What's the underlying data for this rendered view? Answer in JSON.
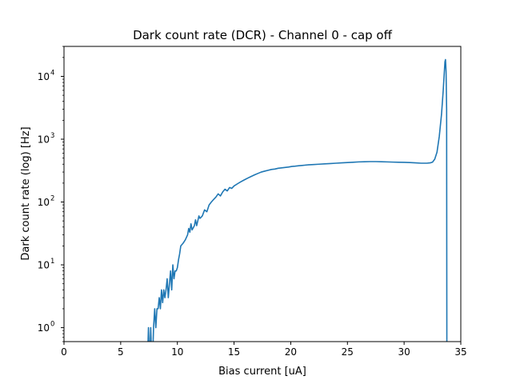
{
  "chart_data": {
    "type": "line",
    "title": "Dark count rate (DCR) - Channel 0 - cap off",
    "xlabel": "Bias current [uA]",
    "ylabel": "Dark count rate (log) [Hz]",
    "xlim": [
      0,
      35
    ],
    "ylim": [
      0.6,
      30000
    ],
    "y_scale": "log",
    "grid": false,
    "x_ticks": [
      0,
      5,
      10,
      15,
      20,
      25,
      30,
      35
    ],
    "y_ticks": [
      {
        "value": 1,
        "label": "10",
        "exp": "0"
      },
      {
        "value": 10,
        "label": "10",
        "exp": "1"
      },
      {
        "value": 100,
        "label": "10",
        "exp": "2"
      },
      {
        "value": 1000,
        "label": "10",
        "exp": "3"
      },
      {
        "value": 10000,
        "label": "10",
        "exp": "4"
      }
    ],
    "series": [
      {
        "color": "#1f77b4",
        "points": [
          [
            7.4,
            0.5
          ],
          [
            7.45,
            1.0
          ],
          [
            7.5,
            0.5
          ],
          [
            7.6,
            0.5
          ],
          [
            7.65,
            1.0
          ],
          [
            7.7,
            0.5
          ],
          [
            7.85,
            0.5
          ],
          [
            7.9,
            1.0
          ],
          [
            8.0,
            2.0
          ],
          [
            8.1,
            1.0
          ],
          [
            8.2,
            2.0
          ],
          [
            8.3,
            2.0
          ],
          [
            8.4,
            3.0
          ],
          [
            8.5,
            2.0
          ],
          [
            8.6,
            4.0
          ],
          [
            8.7,
            2.5
          ],
          [
            8.8,
            4.0
          ],
          [
            8.9,
            3.0
          ],
          [
            9.0,
            4.0
          ],
          [
            9.1,
            6.0
          ],
          [
            9.2,
            3.0
          ],
          [
            9.3,
            5.0
          ],
          [
            9.4,
            8.0
          ],
          [
            9.5,
            4.0
          ],
          [
            9.6,
            10.0
          ],
          [
            9.7,
            6.0
          ],
          [
            9.8,
            8.0
          ],
          [
            9.9,
            8.0
          ],
          [
            10.0,
            9.0
          ],
          [
            10.1,
            12.0
          ],
          [
            10.2,
            15.0
          ],
          [
            10.3,
            20.0
          ],
          [
            10.5,
            22.0
          ],
          [
            10.7,
            25.0
          ],
          [
            10.9,
            30.0
          ],
          [
            11.0,
            38.0
          ],
          [
            11.1,
            33.0
          ],
          [
            11.2,
            45.0
          ],
          [
            11.3,
            36.0
          ],
          [
            11.5,
            42.0
          ],
          [
            11.6,
            52.0
          ],
          [
            11.7,
            42.0
          ],
          [
            11.8,
            50.0
          ],
          [
            11.9,
            60.0
          ],
          [
            12.0,
            55.0
          ],
          [
            12.2,
            60.0
          ],
          [
            12.4,
            75.0
          ],
          [
            12.6,
            70.0
          ],
          [
            12.8,
            90.0
          ],
          [
            13.0,
            100.0
          ],
          [
            13.2,
            110.0
          ],
          [
            13.4,
            120.0
          ],
          [
            13.6,
            135.0
          ],
          [
            13.8,
            125.0
          ],
          [
            14.0,
            145.0
          ],
          [
            14.2,
            160.0
          ],
          [
            14.4,
            150.0
          ],
          [
            14.6,
            170.0
          ],
          [
            14.8,
            165.0
          ],
          [
            15.0,
            180.0
          ],
          [
            15.3,
            195.0
          ],
          [
            15.6,
            210.0
          ],
          [
            15.9,
            225.0
          ],
          [
            16.2,
            240.0
          ],
          [
            16.5,
            255.0
          ],
          [
            16.8,
            270.0
          ],
          [
            17.1,
            285.0
          ],
          [
            17.4,
            300.0
          ],
          [
            17.7,
            310.0
          ],
          [
            18.0,
            320.0
          ],
          [
            18.3,
            330.0
          ],
          [
            18.6,
            335.0
          ],
          [
            18.9,
            345.0
          ],
          [
            19.2,
            350.0
          ],
          [
            19.5,
            355.0
          ],
          [
            19.8,
            360.0
          ],
          [
            20.1,
            368.0
          ],
          [
            20.4,
            372.0
          ],
          [
            20.7,
            378.0
          ],
          [
            21.0,
            382.0
          ],
          [
            21.5,
            390.0
          ],
          [
            22.0,
            395.0
          ],
          [
            22.5,
            400.0
          ],
          [
            23.0,
            405.0
          ],
          [
            23.5,
            410.0
          ],
          [
            24.0,
            415.0
          ],
          [
            24.5,
            420.0
          ],
          [
            25.0,
            425.0
          ],
          [
            25.5,
            430.0
          ],
          [
            26.0,
            435.0
          ],
          [
            26.5,
            438.0
          ],
          [
            27.0,
            440.0
          ],
          [
            27.5,
            440.0
          ],
          [
            28.0,
            438.0
          ],
          [
            28.5,
            435.0
          ],
          [
            29.0,
            432.0
          ],
          [
            29.5,
            430.0
          ],
          [
            30.0,
            428.0
          ],
          [
            30.5,
            425.0
          ],
          [
            31.0,
            420.0
          ],
          [
            31.5,
            415.0
          ],
          [
            32.0,
            415.0
          ],
          [
            32.3,
            420.0
          ],
          [
            32.5,
            430.0
          ],
          [
            32.7,
            480.0
          ],
          [
            32.9,
            620.0
          ],
          [
            33.1,
            1100.0
          ],
          [
            33.3,
            2500.0
          ],
          [
            33.45,
            6000.0
          ],
          [
            33.55,
            12000.0
          ],
          [
            33.6,
            17000.0
          ],
          [
            33.65,
            18500.0
          ],
          [
            33.7,
            12000.0
          ],
          [
            33.75,
            3000.0
          ],
          [
            33.77,
            0.5
          ]
        ]
      }
    ]
  }
}
